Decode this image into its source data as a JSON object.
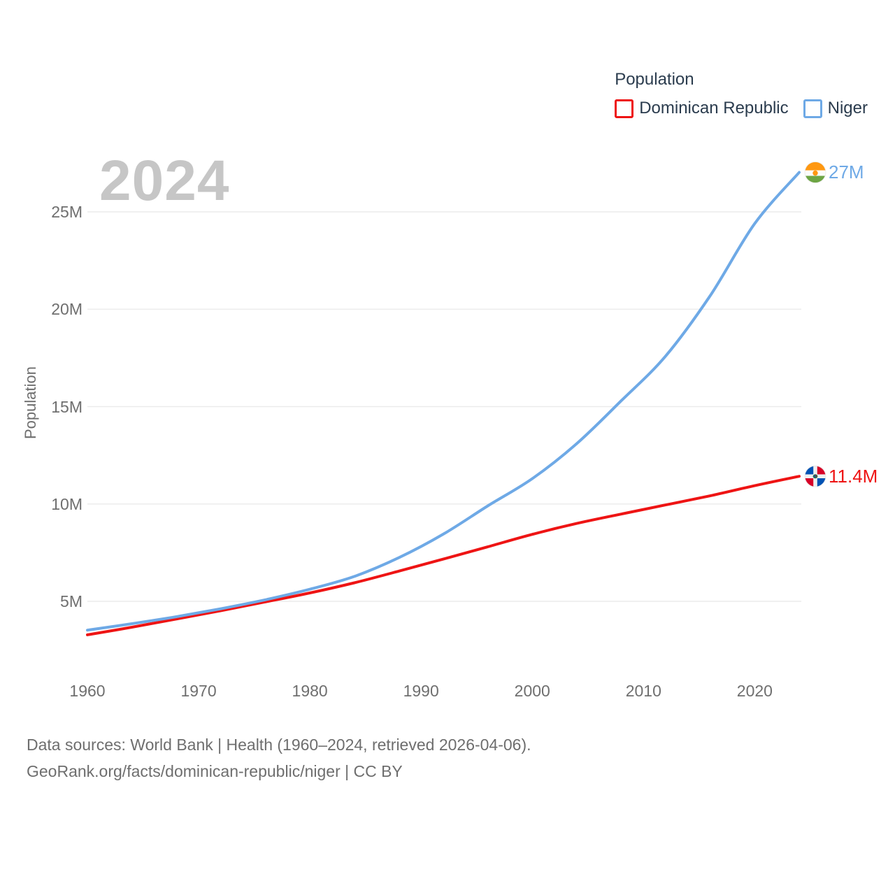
{
  "chart_data": {
    "type": "line",
    "title": "Population",
    "ylabel": "Population",
    "watermark": "2024",
    "x": [
      1960,
      1964,
      1968,
      1972,
      1976,
      1980,
      1984,
      1988,
      1992,
      1996,
      2000,
      2004,
      2008,
      2012,
      2016,
      2020,
      2024
    ],
    "series": [
      {
        "name": "Dominican Republic",
        "color": "#ee1414",
        "values": [
          3.28,
          3.67,
          4.09,
          4.52,
          4.97,
          5.43,
          5.95,
          6.55,
          7.17,
          7.8,
          8.44,
          9.0,
          9.48,
          9.95,
          10.42,
          10.94,
          11.42
        ],
        "end_label": "11.4M",
        "flag": "dominican-republic"
      },
      {
        "name": "Niger",
        "color": "#6ea9e6",
        "values": [
          3.52,
          3.85,
          4.21,
          4.62,
          5.08,
          5.62,
          6.28,
          7.24,
          8.45,
          9.9,
          11.3,
          13.1,
          15.3,
          17.6,
          20.7,
          24.4,
          27.03
        ],
        "end_label": "27M",
        "flag": "niger"
      }
    ],
    "y_ticks": [
      {
        "value": 5,
        "label": "5M"
      },
      {
        "value": 10,
        "label": "10M"
      },
      {
        "value": 15,
        "label": "15M"
      },
      {
        "value": 20,
        "label": "20M"
      },
      {
        "value": 25,
        "label": "25M"
      }
    ],
    "x_ticks": [
      {
        "value": 1960,
        "label": "1960"
      },
      {
        "value": 1970,
        "label": "1970"
      },
      {
        "value": 1980,
        "label": "1980"
      },
      {
        "value": 1990,
        "label": "1990"
      },
      {
        "value": 2000,
        "label": "2000"
      },
      {
        "value": 2010,
        "label": "2010"
      },
      {
        "value": 2020,
        "label": "2020"
      }
    ],
    "xlim": [
      1960,
      2024
    ],
    "ylim": [
      2.3,
      28.5
    ],
    "grid": "horizontal-only",
    "legend_position": "top-right"
  },
  "footer": {
    "line1": "Data sources: World Bank | Health (1960–2024, retrieved 2026-04-06).",
    "line2": "GeoRank.org/facts/dominican-republic/niger | CC BY"
  },
  "colors": {
    "dominican_republic_line": "#ee1414",
    "niger_line": "#6ea9e6",
    "gridline": "#ececec",
    "legend_text": "#2b3c4e",
    "axis_text": "#6f6f6f",
    "watermark_text": "#c6c6c6",
    "footer_text": "#6e6e6e",
    "flag_niger_orange": "#ff9811",
    "flag_niger_green": "#6da544",
    "flag_dr_blue": "#0052b4",
    "flag_dr_red": "#d80027"
  }
}
